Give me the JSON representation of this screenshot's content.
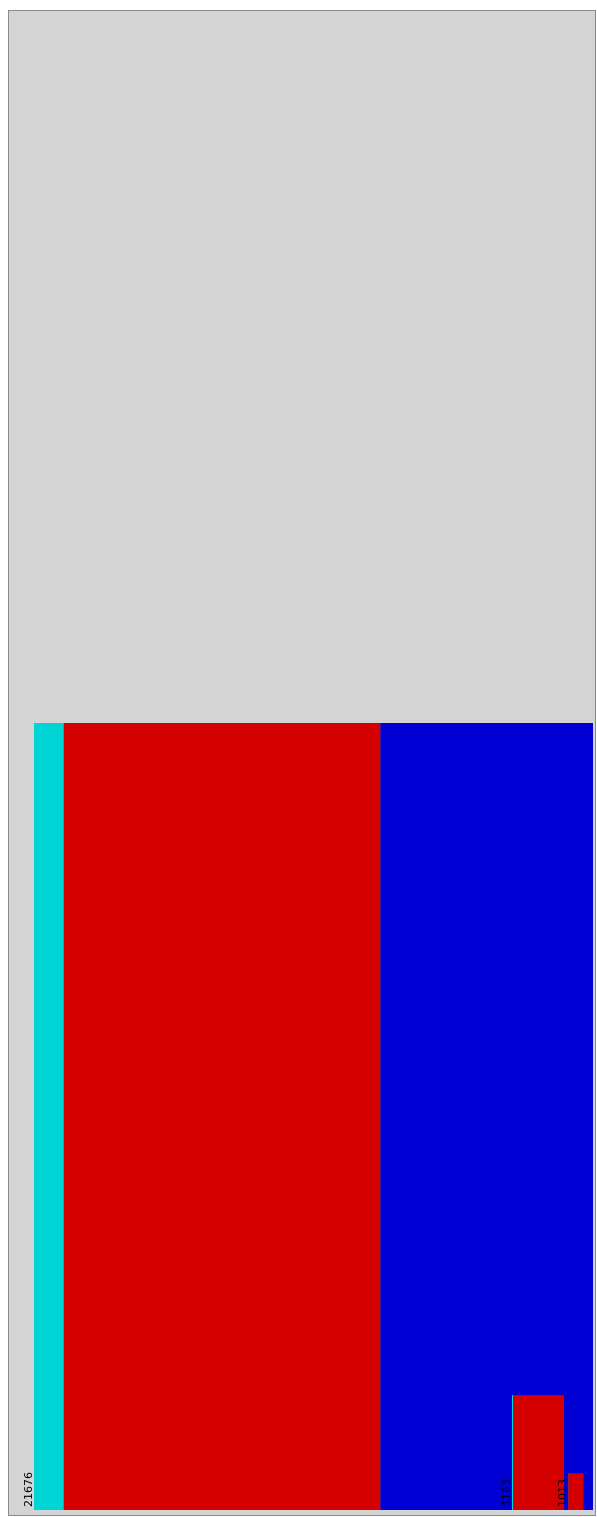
{
  "colors": {
    "background": "#ffffff",
    "plot_area": "#d4d4d4",
    "cyan": "#00d4d4",
    "red": "#d40000",
    "blue": "#0000d4",
    "frame": "#8a8a8a",
    "label_text": "#000000"
  },
  "chart_data": {
    "type": "bar",
    "orientation": "horizontal",
    "stacked": true,
    "title": "",
    "xlabel": "",
    "ylabel": "",
    "categories": [
      "",
      "",
      ""
    ],
    "totals": [
      21676,
      3163,
      1013
    ],
    "total_labels": [
      "21676",
      "3163",
      "1013"
    ],
    "series": [
      {
        "color": "#00d4d4",
        "values": [
          1150,
          40,
          10
        ]
      },
      {
        "color": "#d40000",
        "values": [
          12280,
          1990,
          620
        ]
      },
      {
        "color": "#0000d4",
        "values": [
          8246,
          1133,
          383
        ]
      }
    ],
    "xlim": [
      0,
      21676
    ],
    "grid": false,
    "legend": "none"
  }
}
